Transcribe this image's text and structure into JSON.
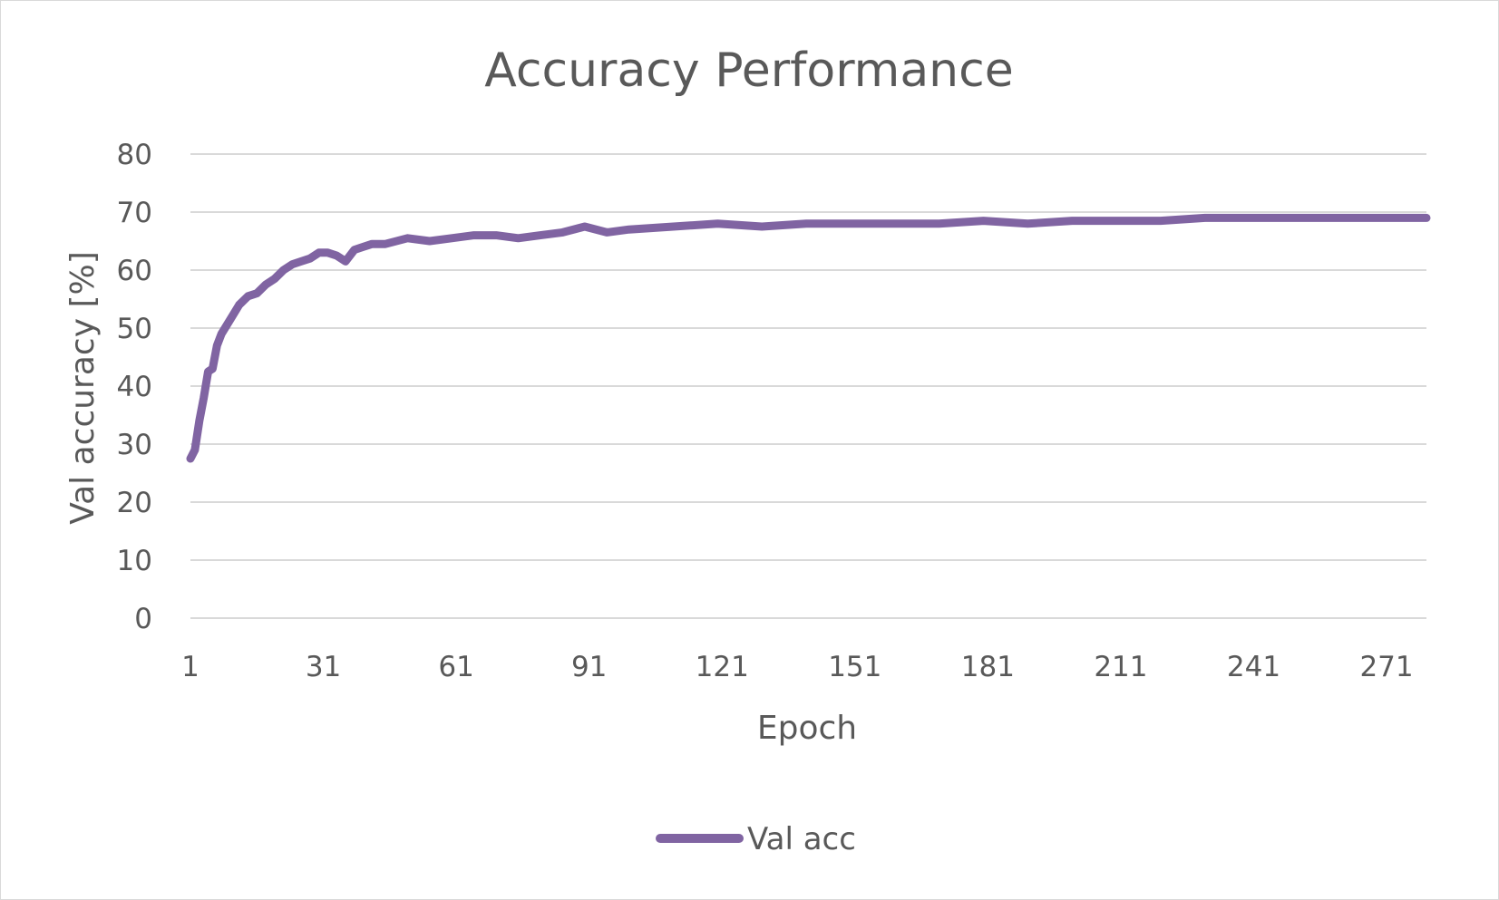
{
  "chart_data": {
    "type": "line",
    "title": "Accuracy Performance",
    "xlabel": "Epoch",
    "ylabel": "Val accuracy [%]",
    "xlim": [
      1,
      280
    ],
    "ylim": [
      0,
      80
    ],
    "y_ticks": [
      0,
      10,
      20,
      30,
      40,
      50,
      60,
      70,
      80
    ],
    "x_ticks": [
      1,
      31,
      61,
      91,
      121,
      151,
      181,
      211,
      241,
      271
    ],
    "grid": true,
    "legend_position": "bottom",
    "series": [
      {
        "name": "Val acc",
        "color": "#8064a2",
        "x": [
          1,
          2,
          3,
          4,
          5,
          6,
          7,
          8,
          10,
          12,
          14,
          16,
          18,
          20,
          22,
          24,
          26,
          28,
          30,
          32,
          34,
          36,
          38,
          40,
          42,
          45,
          50,
          55,
          60,
          65,
          70,
          75,
          80,
          85,
          90,
          95,
          100,
          110,
          120,
          130,
          140,
          150,
          160,
          170,
          180,
          190,
          200,
          210,
          220,
          230,
          240,
          250,
          260,
          270,
          280
        ],
        "values": [
          27.5,
          29.0,
          34.0,
          38.0,
          42.5,
          43.0,
          47.0,
          49.0,
          51.5,
          54.0,
          55.5,
          56.0,
          57.5,
          58.5,
          60.0,
          61.0,
          61.5,
          62.0,
          63.0,
          63.0,
          62.5,
          61.5,
          63.5,
          64.0,
          64.5,
          64.5,
          65.5,
          65.0,
          65.5,
          66.0,
          66.0,
          65.5,
          66.0,
          66.5,
          67.5,
          66.5,
          67.0,
          67.5,
          68.0,
          67.5,
          68.0,
          68.0,
          68.0,
          68.0,
          68.5,
          68.0,
          68.5,
          68.5,
          68.5,
          69.0,
          69.0,
          69.0,
          69.0,
          69.0,
          69.0
        ]
      }
    ]
  }
}
